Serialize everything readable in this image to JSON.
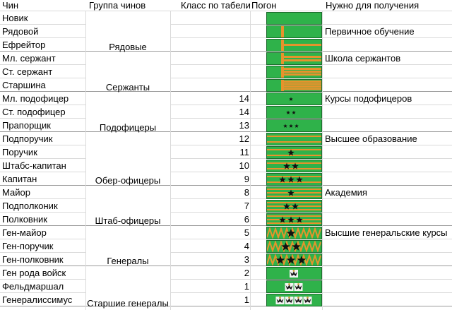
{
  "headers": {
    "rank": "Чин",
    "group": "Группа чинов",
    "class": "Класс по табели",
    "strap": "Погон",
    "requirement": "Нужно для получения"
  },
  "groups": [
    {
      "name": "Рядовые"
    },
    {
      "name": "Сержанты"
    },
    {
      "name": "Подофицеры"
    },
    {
      "name": "Обер-офицеры"
    },
    {
      "name": "Штаб-офицеры"
    },
    {
      "name": "Генералы"
    },
    {
      "name": "Старшие генералы"
    }
  ],
  "rows": [
    {
      "rank": "Новик",
      "class": "",
      "requirement": "",
      "strap": {
        "type": "plain"
      }
    },
    {
      "rank": "Рядовой",
      "class": "",
      "requirement": "Первичное обучение",
      "strap": {
        "type": "vbar"
      }
    },
    {
      "rank": "Ефрейтор",
      "class": "",
      "requirement": "",
      "strap": {
        "type": "vbar_h1"
      }
    },
    {
      "rank": "Мл. сержант",
      "class": "",
      "requirement": "Школа сержантов",
      "strap": {
        "type": "vbar_h2"
      }
    },
    {
      "rank": "Ст. сержант",
      "class": "",
      "requirement": "",
      "strap": {
        "type": "vbar_h3"
      }
    },
    {
      "rank": "Старшина",
      "class": "",
      "requirement": "",
      "strap": {
        "type": "vbar_h4"
      }
    },
    {
      "rank": "Мл. подофицер",
      "class": "14",
      "requirement": "Курсы подофицеров",
      "strap": {
        "type": "stars",
        "stars": 1,
        "size": "small"
      }
    },
    {
      "rank": "Ст. подофицер",
      "class": "14",
      "requirement": "",
      "strap": {
        "type": "stars",
        "stars": 2,
        "size": "small"
      }
    },
    {
      "rank": "Прапорщик",
      "class": "13",
      "requirement": "",
      "strap": {
        "type": "stars",
        "stars": 3,
        "size": "small"
      }
    },
    {
      "rank": "Подпоручик",
      "class": "12",
      "requirement": "Высшее образование",
      "strap": {
        "type": "stripes",
        "stripes": 2,
        "stars": 0,
        "size": "medium"
      }
    },
    {
      "rank": "Поручик",
      "class": "11",
      "requirement": "",
      "strap": {
        "type": "stripes",
        "stripes": 2,
        "stars": 1,
        "size": "medium"
      }
    },
    {
      "rank": "Штабс-капитан",
      "class": "10",
      "requirement": "",
      "strap": {
        "type": "stripes",
        "stripes": 2,
        "stars": 2,
        "size": "medium"
      }
    },
    {
      "rank": "Капитан",
      "class": "9",
      "requirement": "",
      "strap": {
        "type": "stripes",
        "stripes": 2,
        "stars": 3,
        "size": "medium"
      }
    },
    {
      "rank": "Майор",
      "class": "8",
      "requirement": "Академия",
      "strap": {
        "type": "stripes",
        "stripes": 3,
        "stars": 1,
        "size": "medium"
      }
    },
    {
      "rank": "Подполконик",
      "class": "7",
      "requirement": "",
      "strap": {
        "type": "stripes",
        "stripes": 3,
        "stars": 2,
        "size": "medium"
      }
    },
    {
      "rank": "Полковник",
      "class": "6",
      "requirement": "",
      "strap": {
        "type": "stripes",
        "stripes": 3,
        "stars": 3,
        "size": "medium"
      }
    },
    {
      "rank": "Ген-майор",
      "class": "5",
      "requirement": "Высшие генеральские курсы",
      "strap": {
        "type": "zigzag",
        "stars": 1,
        "size": "large"
      }
    },
    {
      "rank": "Ген-поручик",
      "class": "4",
      "requirement": "",
      "strap": {
        "type": "zigzag",
        "stars": 2,
        "size": "large"
      }
    },
    {
      "rank": "Ген-полковник",
      "class": "3",
      "requirement": "",
      "strap": {
        "type": "zigzag",
        "stars": 3,
        "size": "large"
      }
    },
    {
      "rank": "Ген рода войск",
      "class": "2",
      "requirement": "",
      "strap": {
        "type": "eagles",
        "eagles": 1
      }
    },
    {
      "rank": "Фельдмаршал",
      "class": "1",
      "requirement": "",
      "strap": {
        "type": "eagles",
        "eagles": 2
      }
    },
    {
      "rank": "Генералиссимус",
      "class": "1",
      "requirement": "",
      "strap": {
        "type": "eagles",
        "eagles": 4
      }
    }
  ],
  "colors": {
    "strap_green": "#2fb24a",
    "strap_orange": "#e6932c",
    "strap_border": "#1d6b2d"
  }
}
